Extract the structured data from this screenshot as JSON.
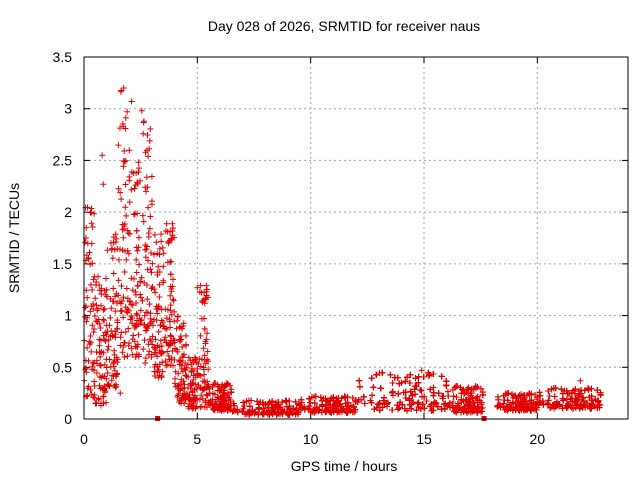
{
  "chart_data": {
    "type": "scatter",
    "title": "Day 028 of 2026, SRMTID for receiver naus",
    "xlabel": "GPS time / hours",
    "ylabel": "SRMTID / TECUs",
    "xlim": [
      0,
      24
    ],
    "ylim": [
      0,
      3.5
    ],
    "x_ticks": [
      0,
      5,
      10,
      15,
      20
    ],
    "x_tick_labels": [
      "0",
      "5",
      "10",
      "15",
      "20"
    ],
    "y_ticks": [
      0,
      0.5,
      1,
      1.5,
      2,
      2.5,
      3,
      3.5
    ],
    "y_tick_labels": [
      "0",
      "0.5",
      "1",
      "1.5",
      "2",
      "2.5",
      "3",
      "3.5"
    ],
    "grid": true,
    "marker": "plus",
    "series": [
      {
        "name": "SRMTID",
        "color": "#e00000",
        "envelope": [
          {
            "x_start": 0.0,
            "x_end": 0.5,
            "y_min": 0.2,
            "y_max": 2.2
          },
          {
            "x_start": 0.5,
            "x_end": 1.0,
            "y_min": 0.15,
            "y_max": 1.4
          },
          {
            "x_start": 1.0,
            "x_end": 1.5,
            "y_min": 0.3,
            "y_max": 1.8
          },
          {
            "x_start": 1.5,
            "x_end": 2.0,
            "y_min": 0.6,
            "y_max": 3.2
          },
          {
            "x_start": 2.0,
            "x_end": 2.5,
            "y_min": 0.6,
            "y_max": 2.5
          },
          {
            "x_start": 2.5,
            "x_end": 3.0,
            "y_min": 0.5,
            "y_max": 2.9
          },
          {
            "x_start": 3.0,
            "x_end": 3.5,
            "y_min": 0.4,
            "y_max": 1.8
          },
          {
            "x_start": 3.5,
            "x_end": 4.0,
            "y_min": 0.5,
            "y_max": 1.9
          },
          {
            "x_start": 4.0,
            "x_end": 4.5,
            "y_min": 0.15,
            "y_max": 1.0
          },
          {
            "x_start": 4.5,
            "x_end": 5.0,
            "y_min": 0.1,
            "y_max": 0.6
          },
          {
            "x_start": 5.0,
            "x_end": 5.5,
            "y_min": 0.1,
            "y_max": 1.3
          },
          {
            "x_start": 5.5,
            "x_end": 6.5,
            "y_min": 0.08,
            "y_max": 0.35
          },
          {
            "x_start": 6.5,
            "x_end": 9.5,
            "y_min": 0.04,
            "y_max": 0.18
          },
          {
            "x_start": 9.5,
            "x_end": 12.0,
            "y_min": 0.06,
            "y_max": 0.22
          },
          {
            "x_start": 12.0,
            "x_end": 16.0,
            "y_min": 0.08,
            "y_max": 0.45
          },
          {
            "x_start": 16.0,
            "x_end": 17.6,
            "y_min": 0.06,
            "y_max": 0.32
          },
          {
            "x_start": 18.2,
            "x_end": 20.0,
            "y_min": 0.08,
            "y_max": 0.25
          },
          {
            "x_start": 20.0,
            "x_end": 22.8,
            "y_min": 0.1,
            "y_max": 0.3
          }
        ],
        "gaps": [
          [
            17.6,
            18.2
          ]
        ],
        "outliers": [
          {
            "x": 0.8,
            "y": 2.55
          },
          {
            "x": 0.85,
            "y": 2.27
          },
          {
            "x": 1.75,
            "y": 3.2
          },
          {
            "x": 2.55,
            "y": 2.98
          },
          {
            "x": 2.1,
            "y": 3.07
          },
          {
            "x": 0.75,
            "y": 0.13
          },
          {
            "x": 1.6,
            "y": 0.25
          },
          {
            "x": 5.0,
            "y": 1.27
          },
          {
            "x": 14.9,
            "y": 0.47
          },
          {
            "x": 21.9,
            "y": 0.37
          }
        ]
      }
    ],
    "gap_markers": [
      3.25,
      17.65
    ]
  }
}
